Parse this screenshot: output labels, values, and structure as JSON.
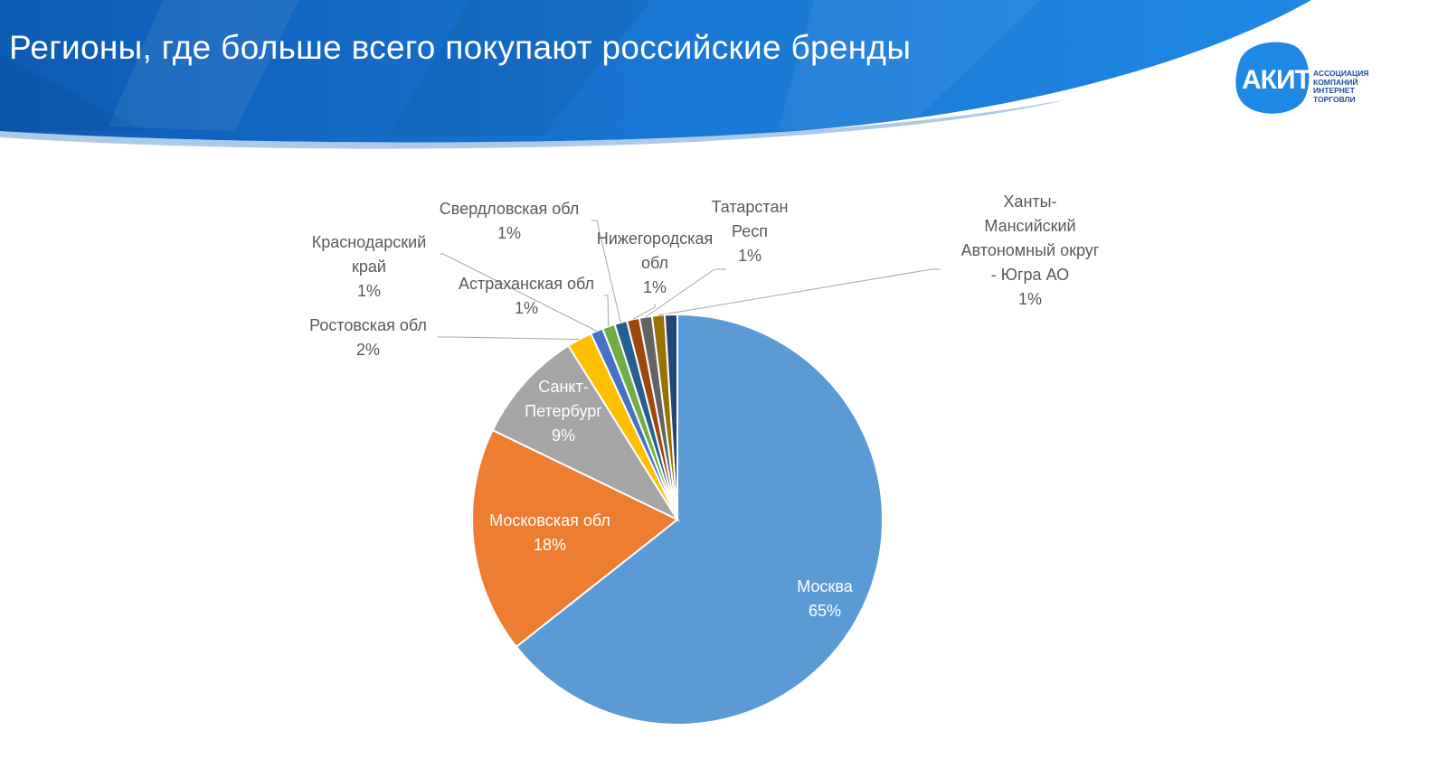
{
  "title": "Регионы, где больше всего покупают российские бренды",
  "logo": {
    "mark": "АКИТ",
    "lines": [
      "АССОЦИАЦИЯ",
      "КОМПАНИЙ",
      "ИНТЕРНЕТ",
      "ТОРГОВЛИ"
    ]
  },
  "colors": {
    "header_dark": "#1565c0",
    "header_light": "#2e86de",
    "logo_blue": "#1e88e5"
  },
  "chart_data": {
    "type": "pie",
    "categories": [
      "Москва",
      "Московская обл",
      "Санкт-Петербург",
      "Ростовская обл",
      "Краснодарский край",
      "Астраханская обл",
      "Свердловская обл",
      "Нижегородская обл",
      "Татарстан Респ",
      "Ханты-Мансийский Автономный округ - Югра АО",
      ""
    ],
    "values": [
      65,
      18,
      9,
      2,
      1,
      1,
      1,
      1,
      1,
      1,
      1
    ],
    "percent_labels": [
      "65%",
      "18%",
      "9%",
      "2%",
      "1%",
      "1%",
      "1%",
      "1%",
      "1%",
      "1%",
      ""
    ],
    "label_lines": [
      [
        "Москва",
        "65%"
      ],
      [
        "Московская обл",
        "18%"
      ],
      [
        "Санкт-",
        "Петербург",
        "9%"
      ],
      [
        "Ростовская обл",
        "2%"
      ],
      [
        "Краснодарский",
        "край",
        "1%"
      ],
      [
        "Астраханская обл",
        "1%"
      ],
      [
        "Свердловская обл",
        "1%"
      ],
      [
        "Нижегородская",
        "обл",
        "1%"
      ],
      [
        "Татарстан",
        "Респ",
        "1%"
      ],
      [
        "Ханты-",
        "Мансийский",
        "Автономный округ",
        "- Югра АО",
        "1%"
      ],
      []
    ],
    "slice_colors": [
      "#5b9bd5",
      "#ed7d31",
      "#a5a5a5",
      "#ffc000",
      "#4472c4",
      "#70ad47",
      "#255e91",
      "#9e480e",
      "#636363",
      "#997300",
      "#264478"
    ],
    "legend": "none"
  }
}
